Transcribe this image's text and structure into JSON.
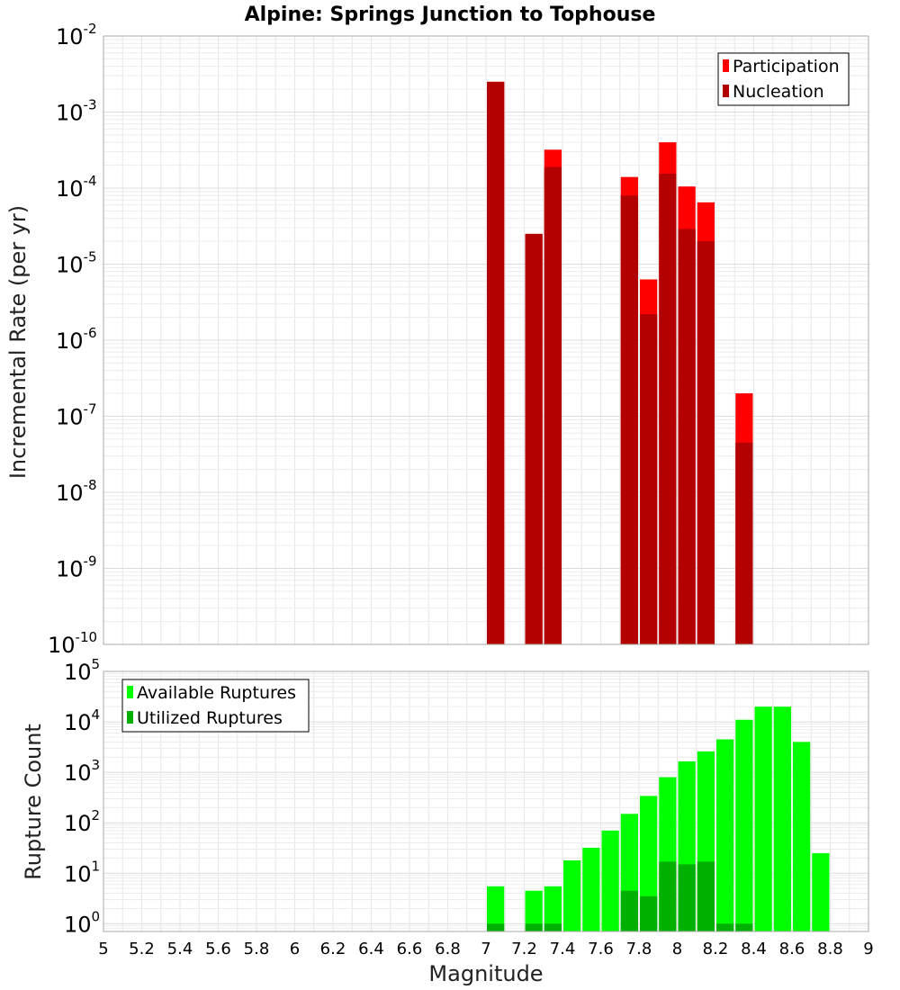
{
  "chart_data": [
    {
      "type": "bar",
      "title": "Alpine: Springs Junction to Tophouse",
      "ylabel": "Incremental Rate (per yr)",
      "xlabel": "",
      "xlim": [
        5,
        9
      ],
      "ylim": [
        1e-10,
        0.01
      ],
      "y_scale": "log",
      "y_tick_exponents": [
        -10,
        -9,
        -8,
        -7,
        -6,
        -5,
        -4,
        -3,
        -2
      ],
      "legend": {
        "position": "top-right",
        "entries": [
          "Participation",
          "Nucleation"
        ]
      },
      "grid": true,
      "series": [
        {
          "name": "Participation",
          "color": "#ff0000",
          "x": [
            7.05,
            7.25,
            7.35,
            7.75,
            7.85,
            7.95,
            8.05,
            8.15,
            8.35
          ],
          "values": [
            0.0025,
            2.5e-05,
            0.00032,
            0.00014,
            6.3e-06,
            0.0004,
            0.000105,
            6.5e-05,
            2e-07
          ]
        },
        {
          "name": "Nucleation",
          "color": "#b30000",
          "x": [
            7.05,
            7.25,
            7.35,
            7.75,
            7.85,
            7.95,
            8.05,
            8.15,
            8.35
          ],
          "values": [
            0.0025,
            2.5e-05,
            0.00019,
            8e-05,
            2.2e-06,
            0.000155,
            2.9e-05,
            2e-05,
            4.5e-08
          ]
        }
      ]
    },
    {
      "type": "bar",
      "title": "",
      "ylabel": "Rupture Count",
      "xlabel": "Magnitude",
      "xlim": [
        5,
        9
      ],
      "ylim": [
        0.7,
        100000.0
      ],
      "y_scale": "log",
      "y_tick_exponents": [
        0,
        1,
        2,
        3,
        4,
        5
      ],
      "x_ticks": [
        "5",
        "5.2",
        "5.4",
        "5.6",
        "5.8",
        "6",
        "6.2",
        "6.4",
        "6.6",
        "6.8",
        "7",
        "7.2",
        "7.4",
        "7.6",
        "7.8",
        "8",
        "8.2",
        "8.4",
        "8.6",
        "8.8",
        "9"
      ],
      "legend": {
        "position": "top-left",
        "entries": [
          "Available Ruptures",
          "Utilized Ruptures"
        ]
      },
      "grid": true,
      "series": [
        {
          "name": "Available Ruptures",
          "color": "#00ff00",
          "x": [
            7.05,
            7.25,
            7.35,
            7.45,
            7.55,
            7.65,
            7.75,
            7.85,
            7.95,
            8.05,
            8.15,
            8.25,
            8.35,
            8.45,
            8.55,
            8.65,
            8.75
          ],
          "values": [
            5.5,
            4.5,
            5.5,
            18,
            32,
            70,
            150,
            340,
            800,
            1650,
            2600,
            4500,
            11000,
            20000,
            20000,
            4000,
            25
          ]
        },
        {
          "name": "Utilized Ruptures",
          "color": "#00b000",
          "x": [
            7.05,
            7.25,
            7.35,
            7.75,
            7.85,
            7.95,
            8.05,
            8.15,
            8.25,
            8.35
          ],
          "values": [
            1,
            1,
            1,
            4.5,
            3.5,
            17,
            15,
            17,
            1,
            1
          ]
        }
      ]
    }
  ]
}
